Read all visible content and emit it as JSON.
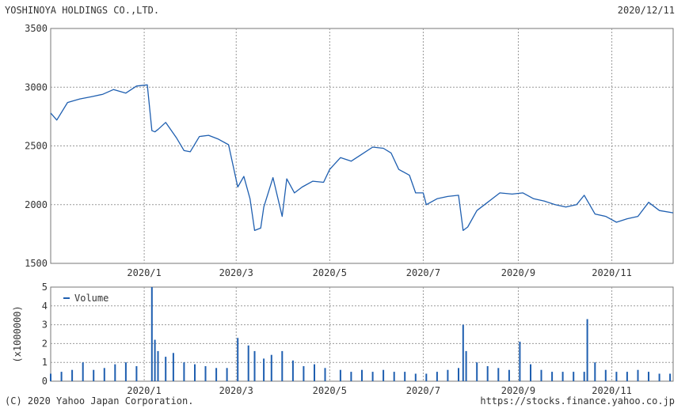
{
  "header": {
    "company": "YOSHINOYA HOLDINGS CO.,LTD.",
    "date": "2020/12/11"
  },
  "footer": {
    "copyright": "(C) 2020 Yahoo Japan Corporation.",
    "source": "https://stocks.finance.yahoo.co.jp"
  },
  "colors": {
    "line": "#1f5fb0",
    "grid": "#999999",
    "frame": "#777777"
  },
  "chart_data": [
    {
      "type": "line",
      "title": "",
      "ylim": [
        1500,
        3500
      ],
      "yticks": [
        "1500",
        "2000",
        "2500",
        "3000",
        "3500"
      ],
      "xticks": [
        {
          "label": "2020/1",
          "x": "2020-01-01"
        },
        {
          "label": "2020/3",
          "x": "2020-03-01"
        },
        {
          "label": "2020/5",
          "x": "2020-05-01"
        },
        {
          "label": "2020/7",
          "x": "2020-07-01"
        },
        {
          "label": "2020/9",
          "x": "2020-09-01"
        },
        {
          "label": "2020/11",
          "x": "2020-11-01"
        }
      ],
      "xrange": [
        "2019-11-01",
        "2020-12-11"
      ],
      "grid": true,
      "series": [
        {
          "x": [
            "2019-11-01",
            "2019-11-05",
            "2019-11-12",
            "2019-11-20",
            "2019-11-28",
            "2019-12-05",
            "2019-12-12",
            "2019-12-20",
            "2019-12-27",
            "2020-01-03",
            "2020-01-06",
            "2020-01-08",
            "2020-01-10",
            "2020-01-15",
            "2020-01-22",
            "2020-01-27",
            "2020-01-31",
            "2020-02-06",
            "2020-02-12",
            "2020-02-18",
            "2020-02-25",
            "2020-03-02",
            "2020-03-06",
            "2020-03-10",
            "2020-03-13",
            "2020-03-17",
            "2020-03-19",
            "2020-03-25",
            "2020-03-31",
            "2020-04-03",
            "2020-04-08",
            "2020-04-13",
            "2020-04-20",
            "2020-04-27",
            "2020-05-01",
            "2020-05-08",
            "2020-05-15",
            "2020-05-22",
            "2020-05-29",
            "2020-06-05",
            "2020-06-10",
            "2020-06-15",
            "2020-06-22",
            "2020-06-26",
            "2020-07-01",
            "2020-07-03",
            "2020-07-10",
            "2020-07-17",
            "2020-07-24",
            "2020-07-27",
            "2020-07-30",
            "2020-08-05",
            "2020-08-12",
            "2020-08-20",
            "2020-08-28",
            "2020-09-04",
            "2020-09-11",
            "2020-09-18",
            "2020-09-25",
            "2020-10-02",
            "2020-10-09",
            "2020-10-14",
            "2020-10-21",
            "2020-10-28",
            "2020-11-04",
            "2020-11-11",
            "2020-11-18",
            "2020-11-25",
            "2020-12-02",
            "2020-12-11"
          ],
          "y": [
            2780,
            2720,
            2870,
            2900,
            2920,
            2940,
            2980,
            2950,
            3010,
            3020,
            2630,
            2620,
            2640,
            2700,
            2570,
            2460,
            2450,
            2580,
            2590,
            2560,
            2510,
            2150,
            2240,
            2050,
            1780,
            1800,
            1980,
            2230,
            1900,
            2220,
            2100,
            2150,
            2200,
            2190,
            2300,
            2400,
            2370,
            2430,
            2490,
            2480,
            2440,
            2300,
            2250,
            2100,
            2100,
            2000,
            2050,
            2070,
            2080,
            1780,
            1810,
            1950,
            2020,
            2100,
            2090,
            2100,
            2050,
            2030,
            2000,
            1980,
            2000,
            2080,
            1920,
            1900,
            1850,
            1880,
            1900,
            2020,
            1950,
            1930
          ]
        }
      ]
    },
    {
      "type": "bar",
      "title": "",
      "ylabel": "(x1000000)",
      "ylim": [
        0,
        5
      ],
      "yticks": [
        "0",
        "1",
        "2",
        "3",
        "4",
        "5"
      ],
      "xticks": [
        {
          "label": "2020/1",
          "x": "2020-01-01"
        },
        {
          "label": "2020/3",
          "x": "2020-03-01"
        },
        {
          "label": "2020/5",
          "x": "2020-05-01"
        },
        {
          "label": "2020/7",
          "x": "2020-07-01"
        },
        {
          "label": "2020/9",
          "x": "2020-09-01"
        },
        {
          "label": "2020/11",
          "x": "2020-11-01"
        }
      ],
      "legend": {
        "position": "top-left",
        "entries": [
          "Volume"
        ]
      },
      "grid": true,
      "series": [
        {
          "name": "Volume",
          "x": [
            "2019-11-01",
            "2019-11-08",
            "2019-11-15",
            "2019-11-22",
            "2019-11-29",
            "2019-12-06",
            "2019-12-13",
            "2019-12-20",
            "2019-12-27",
            "2020-01-06",
            "2020-01-08",
            "2020-01-10",
            "2020-01-15",
            "2020-01-20",
            "2020-01-27",
            "2020-02-03",
            "2020-02-10",
            "2020-02-17",
            "2020-02-24",
            "2020-03-02",
            "2020-03-09",
            "2020-03-13",
            "2020-03-19",
            "2020-03-24",
            "2020-03-31",
            "2020-04-07",
            "2020-04-14",
            "2020-04-21",
            "2020-04-28",
            "2020-05-08",
            "2020-05-15",
            "2020-05-22",
            "2020-05-29",
            "2020-06-05",
            "2020-06-12",
            "2020-06-19",
            "2020-06-26",
            "2020-07-03",
            "2020-07-10",
            "2020-07-17",
            "2020-07-24",
            "2020-07-27",
            "2020-07-29",
            "2020-08-05",
            "2020-08-12",
            "2020-08-19",
            "2020-08-26",
            "2020-09-02",
            "2020-09-09",
            "2020-09-16",
            "2020-09-23",
            "2020-09-30",
            "2020-10-07",
            "2020-10-14",
            "2020-10-16",
            "2020-10-21",
            "2020-10-28",
            "2020-11-04",
            "2020-11-11",
            "2020-11-18",
            "2020-11-25",
            "2020-12-02",
            "2020-12-09"
          ],
          "values": [
            0.4,
            0.5,
            0.6,
            1.0,
            0.6,
            0.7,
            0.9,
            1.0,
            0.8,
            5.0,
            2.2,
            1.6,
            1.3,
            1.5,
            1.0,
            0.9,
            0.8,
            0.7,
            0.7,
            2.3,
            1.9,
            1.6,
            1.2,
            1.4,
            1.6,
            1.1,
            0.8,
            0.9,
            0.7,
            0.6,
            0.5,
            0.6,
            0.5,
            0.6,
            0.5,
            0.5,
            0.4,
            0.4,
            0.5,
            0.6,
            0.7,
            3.0,
            1.6,
            1.0,
            0.8,
            0.7,
            0.6,
            2.1,
            0.9,
            0.6,
            0.5,
            0.5,
            0.5,
            0.5,
            3.3,
            1.0,
            0.6,
            0.5,
            0.5,
            0.6,
            0.5,
            0.4,
            0.4
          ]
        }
      ]
    }
  ]
}
